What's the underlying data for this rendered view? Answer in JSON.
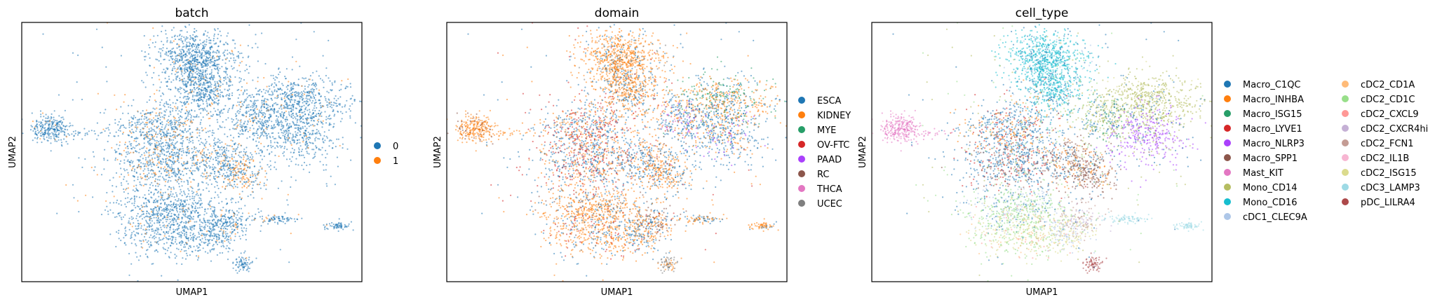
{
  "chart_data": [
    {
      "type": "scatter",
      "title": "batch",
      "xlabel": "UMAP1",
      "ylabel": "UMAP2",
      "legend_position": "right",
      "legend_entries": [
        {
          "label": "0",
          "color": "#1f77b4"
        },
        {
          "label": "1",
          "color": "#ff7f0e"
        }
      ],
      "grid": false,
      "ticks": "none"
    },
    {
      "type": "scatter",
      "title": "domain",
      "xlabel": "UMAP1",
      "ylabel": "UMAP2",
      "legend_position": "right",
      "legend_entries": [
        {
          "label": "ESCA",
          "color": "#1f77b4"
        },
        {
          "label": "KIDNEY",
          "color": "#ff7f0e"
        },
        {
          "label": "MYE",
          "color": "#279e68"
        },
        {
          "label": "OV-FTC",
          "color": "#d62728"
        },
        {
          "label": "PAAD",
          "color": "#aa40fc"
        },
        {
          "label": "RC",
          "color": "#8c564b"
        },
        {
          "label": "THCA",
          "color": "#e377c2"
        },
        {
          "label": "UCEC",
          "color": "#7f7f7f"
        }
      ],
      "grid": false,
      "ticks": "none"
    },
    {
      "type": "scatter",
      "title": "cell_type",
      "xlabel": "UMAP1",
      "ylabel": "UMAP2",
      "legend_position": "right",
      "legend_entries": [
        {
          "label": "Macro_C1QC",
          "color": "#1f77b4"
        },
        {
          "label": "Macro_INHBA",
          "color": "#ff7f0e"
        },
        {
          "label": "Macro_ISG15",
          "color": "#279e68"
        },
        {
          "label": "Macro_LYVE1",
          "color": "#d62728"
        },
        {
          "label": "Macro_NLRP3",
          "color": "#aa40fc"
        },
        {
          "label": "Macro_SPP1",
          "color": "#8c564b"
        },
        {
          "label": "Mast_KIT",
          "color": "#e377c2"
        },
        {
          "label": "Mono_CD14",
          "color": "#b5bd61"
        },
        {
          "label": "Mono_CD16",
          "color": "#17becf"
        },
        {
          "label": "cDC1_CLEC9A",
          "color": "#aec7e8"
        },
        {
          "label": "cDC2_CD1A",
          "color": "#ffbb78"
        },
        {
          "label": "cDC2_CD1C",
          "color": "#98df8a"
        },
        {
          "label": "cDC2_CXCL9",
          "color": "#ff9896"
        },
        {
          "label": "cDC2_CXCR4hi",
          "color": "#c5b0d5"
        },
        {
          "label": "cDC2_FCN1",
          "color": "#c49c94"
        },
        {
          "label": "cDC2_IL1B",
          "color": "#f7b6d2"
        },
        {
          "label": "cDC2_ISG15",
          "color": "#dbdb8d"
        },
        {
          "label": "cDC3_LAMP3",
          "color": "#9edae5"
        },
        {
          "label": "pDC_LILRA4",
          "color": "#ad494a"
        }
      ],
      "grid": false,
      "ticks": "none"
    }
  ]
}
